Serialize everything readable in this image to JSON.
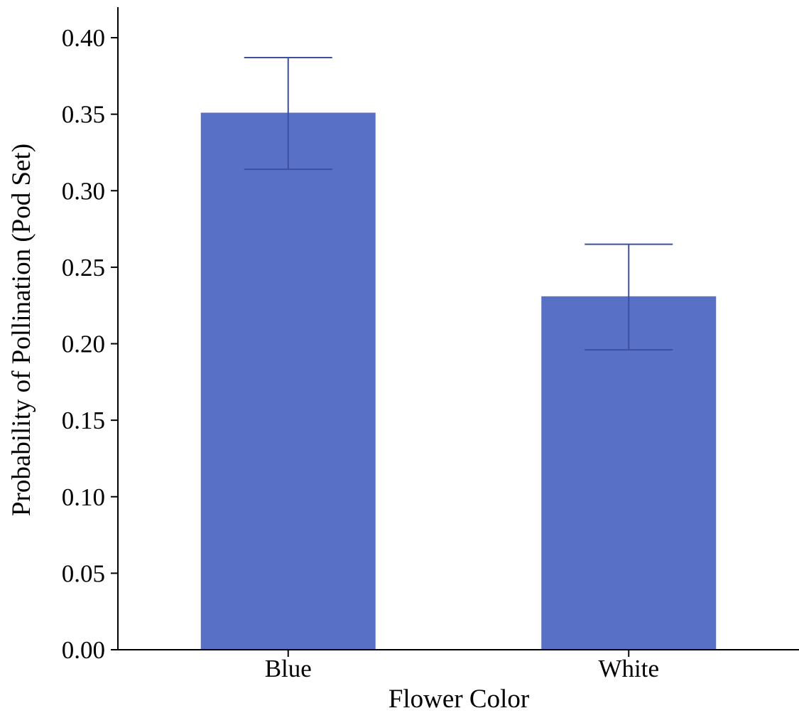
{
  "chart_data": {
    "type": "bar",
    "title": "",
    "xlabel": "Flower Color",
    "ylabel": "Probability of Pollination (Pod Set)",
    "categories": [
      "Blue",
      "White"
    ],
    "values": [
      0.351,
      0.231
    ],
    "error_bars": [
      {
        "low": 0.314,
        "high": 0.387
      },
      {
        "low": 0.196,
        "high": 0.265
      }
    ],
    "ylim": [
      0,
      0.42
    ],
    "yticks": [
      0.0,
      0.05,
      0.1,
      0.15,
      0.2,
      0.25,
      0.3,
      0.35,
      0.4
    ],
    "ytick_labels": [
      "0.00",
      "0.05",
      "0.10",
      "0.15",
      "0.20",
      "0.25",
      "0.30",
      "0.35",
      "0.40"
    ],
    "grid": false,
    "legend": "none",
    "colors": {
      "bar": "#5870c6",
      "error_bar": "#3d4fa0",
      "axis": "#000000"
    }
  }
}
